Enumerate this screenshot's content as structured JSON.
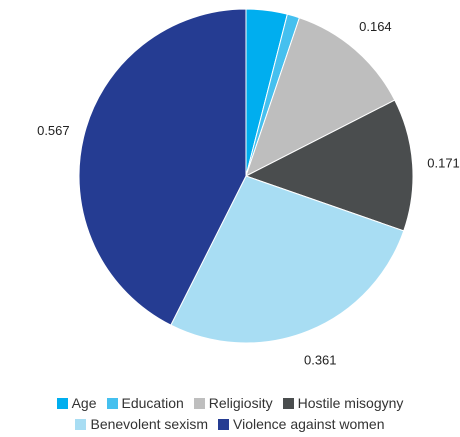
{
  "chart_data": {
    "type": "pie",
    "categories": [
      "Age",
      "Education",
      "Religiosity",
      "Hostile misogyny",
      "Benevolent sexism",
      "Violence against women"
    ],
    "values": [
      0.053,
      0.016,
      0.164,
      0.171,
      0.361,
      0.567
    ],
    "data_labels": [
      "",
      "",
      "0.164",
      "0.171",
      "0.361",
      "0.567"
    ],
    "colors": [
      "#00AEEF",
      "#45C0EF",
      "#BEBEBE",
      "#4A4D4E",
      "#A8DDF3",
      "#253C92"
    ],
    "legend": {
      "position": "bottom",
      "row1": [
        {
          "label": "Age",
          "color": "#00AEEF"
        },
        {
          "label": "Education",
          "color": "#45C0EF"
        },
        {
          "label": "Religiosity",
          "color": "#BEBEBE"
        },
        {
          "label": "Hostile misogyny",
          "color": "#4A4D4E"
        }
      ],
      "row2": [
        {
          "label": "Benevolent sexism",
          "color": "#A8DDF3"
        },
        {
          "label": "Violence against women",
          "color": "#253C92"
        }
      ]
    }
  }
}
